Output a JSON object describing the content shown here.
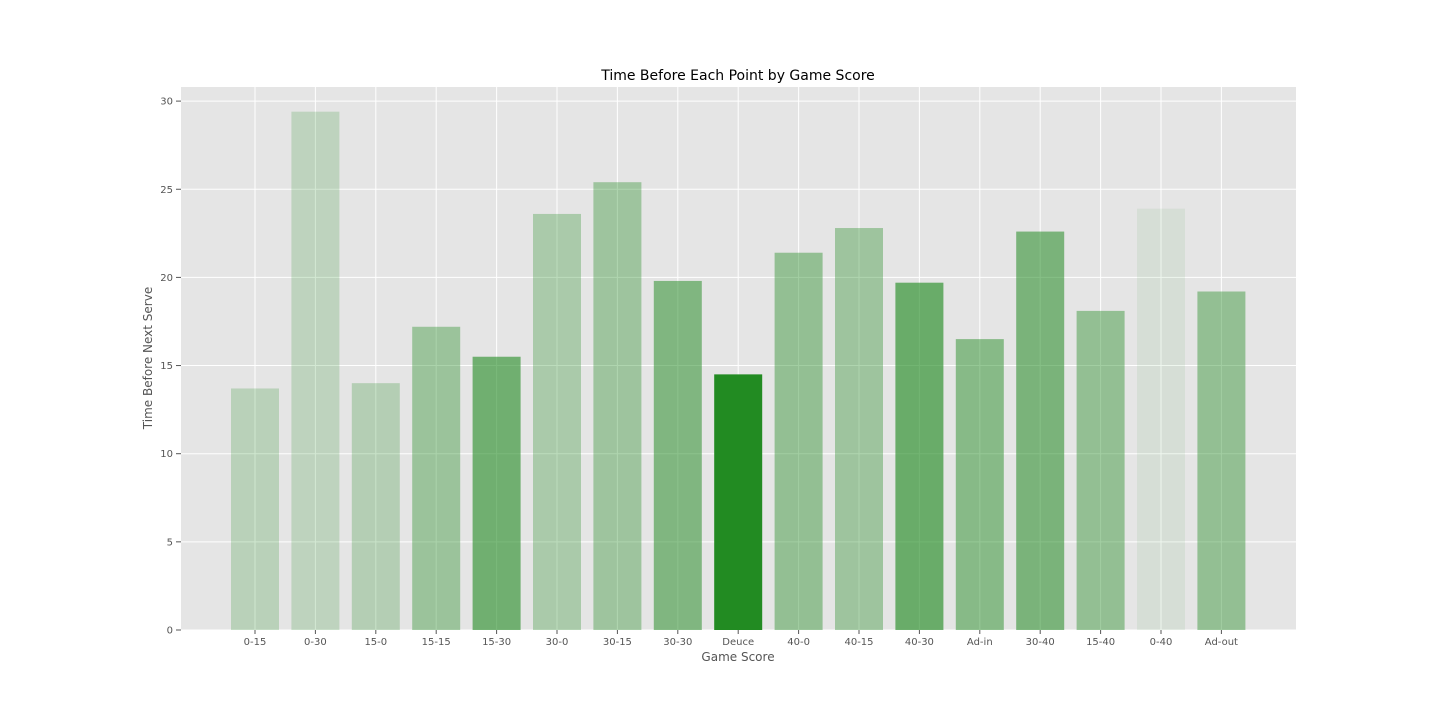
{
  "chart_data": {
    "type": "bar",
    "title": "Time Before Each Point by Game Score",
    "xlabel": "Game Score",
    "ylabel": "Time Before Next Serve",
    "ylim": [
      0,
      30.8
    ],
    "yticks": [
      0,
      5,
      10,
      15,
      20,
      25,
      30
    ],
    "grid": true,
    "background_color": "#e5e5e5",
    "bar_color": "#228b22",
    "categories": [
      "0-15",
      "0-30",
      "15-0",
      "15-15",
      "15-30",
      "30-0",
      "30-15",
      "30-30",
      "Deuce",
      "40-0",
      "40-15",
      "40-30",
      "Ad-in",
      "30-40",
      "15-40",
      "0-40",
      "Ad-out"
    ],
    "values": [
      13.7,
      29.4,
      14.0,
      17.2,
      15.5,
      23.6,
      25.4,
      19.8,
      14.5,
      21.4,
      22.8,
      19.7,
      16.5,
      22.6,
      18.1,
      23.9,
      19.2
    ],
    "opacity": [
      0.22,
      0.2,
      0.25,
      0.38,
      0.6,
      0.3,
      0.36,
      0.52,
      1.0,
      0.42,
      0.36,
      0.64,
      0.48,
      0.55,
      0.42,
      0.08,
      0.42
    ]
  }
}
